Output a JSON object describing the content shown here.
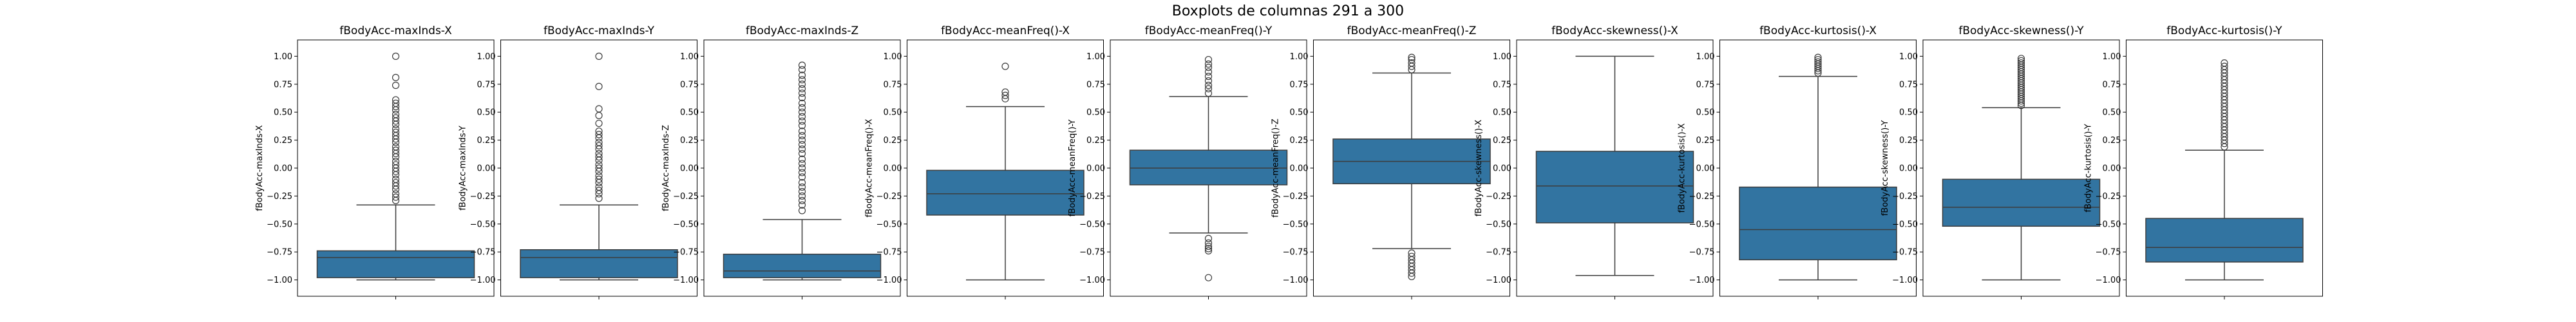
{
  "figure": {
    "suptitle": "Boxplots de columnas 291 a 300"
  },
  "colors": {
    "box": "#3274a1",
    "line": "#3d3d3d",
    "outlier_edge": "#3d3d3d"
  },
  "chart_data": [
    {
      "type": "box",
      "title": "fBodyAcc-maxInds-X",
      "ylabel": "fBodyAcc-maxInds-X",
      "ylim": [
        -1.1,
        1.1
      ],
      "yticks": [
        -1.0,
        -0.75,
        -0.5,
        -0.25,
        0.0,
        0.25,
        0.5,
        0.75,
        1.0
      ],
      "grid": false,
      "stats": {
        "whisker_low": -1.0,
        "q1": -0.98,
        "median": -0.8,
        "q3": -0.74,
        "whisker_high": -0.33
      },
      "outliers": [
        -0.29,
        -0.26,
        -0.23,
        -0.19,
        -0.16,
        -0.13,
        -0.1,
        -0.06,
        -0.03,
        0.0,
        0.03,
        0.06,
        0.1,
        0.13,
        0.16,
        0.19,
        0.23,
        0.26,
        0.29,
        0.32,
        0.35,
        0.39,
        0.42,
        0.45,
        0.48,
        0.52,
        0.55,
        0.58,
        0.61,
        0.74,
        0.81,
        1.0
      ]
    },
    {
      "type": "box",
      "title": "fBodyAcc-maxInds-Y",
      "ylabel": "fBodyAcc-maxInds-Y",
      "ylim": [
        -1.1,
        1.1
      ],
      "yticks": [
        -1.0,
        -0.75,
        -0.5,
        -0.25,
        0.0,
        0.25,
        0.5,
        0.75,
        1.0
      ],
      "grid": false,
      "stats": {
        "whisker_low": -1.0,
        "q1": -0.98,
        "median": -0.8,
        "q3": -0.73,
        "whisker_high": -0.33
      },
      "outliers": [
        -0.27,
        -0.23,
        -0.2,
        -0.17,
        -0.13,
        -0.1,
        -0.07,
        -0.03,
        0.0,
        0.03,
        0.07,
        0.1,
        0.13,
        0.17,
        0.2,
        0.23,
        0.27,
        0.3,
        0.33,
        0.4,
        0.47,
        0.53,
        0.73,
        1.0
      ]
    },
    {
      "type": "box",
      "title": "fBodyAcc-maxInds-Z",
      "ylabel": "fBodyAcc-maxInds-Z",
      "ylim": [
        -1.1,
        1.1
      ],
      "yticks": [
        -1.0,
        -0.75,
        -0.5,
        -0.25,
        0.0,
        0.25,
        0.5,
        0.75,
        1.0
      ],
      "grid": false,
      "stats": {
        "whisker_low": -1.0,
        "q1": -0.98,
        "median": -0.92,
        "q3": -0.77,
        "whisker_high": -0.46
      },
      "outliers": [
        -0.38,
        -0.33,
        -0.29,
        -0.25,
        -0.21,
        -0.17,
        -0.13,
        -0.08,
        -0.04,
        0.0,
        0.04,
        0.08,
        0.13,
        0.17,
        0.21,
        0.25,
        0.29,
        0.33,
        0.38,
        0.42,
        0.46,
        0.5,
        0.54,
        0.58,
        0.63,
        0.67,
        0.71,
        0.75,
        0.79,
        0.83,
        0.88,
        0.92
      ]
    },
    {
      "type": "box",
      "title": "fBodyAcc-meanFreq()-X",
      "ylabel": "fBodyAcc-meanFreq()-X",
      "ylim": [
        -1.1,
        1.1
      ],
      "yticks": [
        -1.0,
        -0.75,
        -0.5,
        -0.25,
        0.0,
        0.25,
        0.5,
        0.75,
        1.0
      ],
      "grid": false,
      "stats": {
        "whisker_low": -1.0,
        "q1": -0.42,
        "median": -0.23,
        "q3": -0.02,
        "whisker_high": 0.55
      },
      "outliers": [
        0.62,
        0.65,
        0.68,
        0.91
      ]
    },
    {
      "type": "box",
      "title": "fBodyAcc-meanFreq()-Y",
      "ylabel": "fBodyAcc-meanFreq()-Y",
      "ylim": [
        -1.1,
        1.1
      ],
      "yticks": [
        -1.0,
        -0.75,
        -0.5,
        -0.25,
        0.0,
        0.25,
        0.5,
        0.75,
        1.0
      ],
      "grid": false,
      "stats": {
        "whisker_low": -0.58,
        "q1": -0.15,
        "median": 0.0,
        "q3": 0.16,
        "whisker_high": 0.64
      },
      "outliers": [
        -0.63,
        -0.67,
        -0.7,
        -0.72,
        -0.74,
        -0.98,
        0.67,
        0.71,
        0.74,
        0.78,
        0.82,
        0.86,
        0.9,
        0.93,
        0.97
      ]
    },
    {
      "type": "box",
      "title": "fBodyAcc-meanFreq()-Z",
      "ylabel": "fBodyAcc-meanFreq()-Z",
      "ylim": [
        -1.1,
        1.1
      ],
      "yticks": [
        -1.0,
        -0.75,
        -0.5,
        -0.25,
        0.0,
        0.25,
        0.5,
        0.75,
        1.0
      ],
      "grid": false,
      "stats": {
        "whisker_low": -0.72,
        "q1": -0.14,
        "median": 0.06,
        "q3": 0.26,
        "whisker_high": 0.85
      },
      "outliers": [
        -0.76,
        -0.79,
        -0.82,
        -0.85,
        -0.88,
        -0.91,
        -0.94,
        -0.97,
        0.88,
        0.91,
        0.94,
        0.97,
        0.99
      ]
    },
    {
      "type": "box",
      "title": "fBodyAcc-skewness()-X",
      "ylabel": "fBodyAcc-skewness()-X",
      "ylim": [
        -1.1,
        1.1
      ],
      "yticks": [
        -1.0,
        -0.75,
        -0.5,
        -0.25,
        0.0,
        0.25,
        0.5,
        0.75,
        1.0
      ],
      "grid": false,
      "stats": {
        "whisker_low": -0.96,
        "q1": -0.49,
        "median": -0.16,
        "q3": 0.15,
        "whisker_high": 1.0
      },
      "outliers": []
    },
    {
      "type": "box",
      "title": "fBodyAcc-kurtosis()-X",
      "ylabel": "fBodyAcc-kurtosis()-X",
      "ylim": [
        -1.1,
        1.1
      ],
      "yticks": [
        -1.0,
        -0.75,
        -0.5,
        -0.25,
        0.0,
        0.25,
        0.5,
        0.75,
        1.0
      ],
      "grid": false,
      "stats": {
        "whisker_low": -1.0,
        "q1": -0.82,
        "median": -0.55,
        "q3": -0.17,
        "whisker_high": 0.82
      },
      "outliers": [
        0.85,
        0.87,
        0.89,
        0.91,
        0.93,
        0.95,
        0.97,
        0.99
      ]
    },
    {
      "type": "box",
      "title": "fBodyAcc-skewness()-Y",
      "ylabel": "fBodyAcc-skewness()-Y",
      "ylim": [
        -1.1,
        1.1
      ],
      "yticks": [
        -1.0,
        -0.75,
        -0.5,
        -0.25,
        0.0,
        0.25,
        0.5,
        0.75,
        1.0
      ],
      "grid": false,
      "stats": {
        "whisker_low": -1.0,
        "q1": -0.52,
        "median": -0.35,
        "q3": -0.1,
        "whisker_high": 0.54
      },
      "outliers": [
        0.56,
        0.58,
        0.6,
        0.62,
        0.64,
        0.66,
        0.68,
        0.7,
        0.72,
        0.74,
        0.76,
        0.78,
        0.8,
        0.82,
        0.84,
        0.86,
        0.88,
        0.9,
        0.92,
        0.94,
        0.96,
        0.98
      ]
    },
    {
      "type": "box",
      "title": "fBodyAcc-kurtosis()-Y",
      "ylabel": "fBodyAcc-kurtosis()-Y",
      "ylim": [
        -1.1,
        1.1
      ],
      "yticks": [
        -1.0,
        -0.75,
        -0.5,
        -0.25,
        0.0,
        0.25,
        0.5,
        0.75,
        1.0
      ],
      "grid": false,
      "stats": {
        "whisker_low": -1.0,
        "q1": -0.84,
        "median": -0.71,
        "q3": -0.45,
        "whisker_high": 0.16
      },
      "outliers": [
        0.19,
        0.22,
        0.25,
        0.28,
        0.31,
        0.34,
        0.37,
        0.4,
        0.43,
        0.46,
        0.49,
        0.52,
        0.55,
        0.58,
        0.61,
        0.64,
        0.67,
        0.7,
        0.73,
        0.76,
        0.79,
        0.82,
        0.85,
        0.88,
        0.91,
        0.94
      ]
    }
  ]
}
